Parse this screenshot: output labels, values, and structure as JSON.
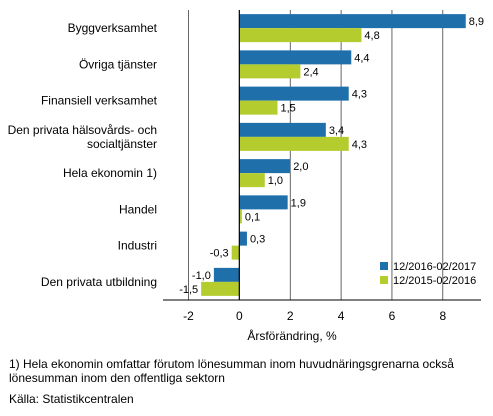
{
  "chart_data": {
    "type": "bar",
    "orientation": "horizontal",
    "title": "",
    "xlabel": "Årsförändring, %",
    "ylabel": "",
    "xlim": [
      -3,
      9.5
    ],
    "x_ticks": [
      -2,
      0,
      2,
      4,
      6,
      8
    ],
    "grid": true,
    "legend_position": "bottom-right",
    "categories": [
      [
        "Byggverksamhet"
      ],
      [
        "Övriga tjänster"
      ],
      [
        "Finansiell verksamhet"
      ],
      [
        "Den privata hälsovårds- och",
        "socialtjänster"
      ],
      [
        "Hela ekonomin 1)"
      ],
      [
        "Handel"
      ],
      [
        "Industri"
      ],
      [
        "Den privata utbildning"
      ]
    ],
    "series": [
      {
        "name": "12/2016-02/2017",
        "color": "#1F6FAA",
        "values": [
          8.9,
          4.4,
          4.3,
          3.4,
          2.0,
          1.9,
          0.3,
          -1.0
        ],
        "labels": [
          "8,9",
          "4,4",
          "4,3",
          "3,4",
          "2,0",
          "1,9",
          "0,3",
          "-1,0"
        ]
      },
      {
        "name": "12/2015-02/2016",
        "color": "#B5CC2F",
        "values": [
          4.8,
          2.4,
          1.5,
          4.3,
          1.0,
          0.1,
          -0.3,
          -1.5
        ],
        "labels": [
          "4,8",
          "2,4",
          "1,5",
          "4,3",
          "1,0",
          "0,1",
          "-0,3",
          "-1,5"
        ]
      }
    ]
  },
  "footnote": {
    "line1": "1) Hela ekonomin omfattar förutom lönesumman inom huvudnäringsgrenarna också",
    "line2": "lönesumman inom den offentliga sektorn"
  },
  "source": "Källa: Statistikcentralen"
}
